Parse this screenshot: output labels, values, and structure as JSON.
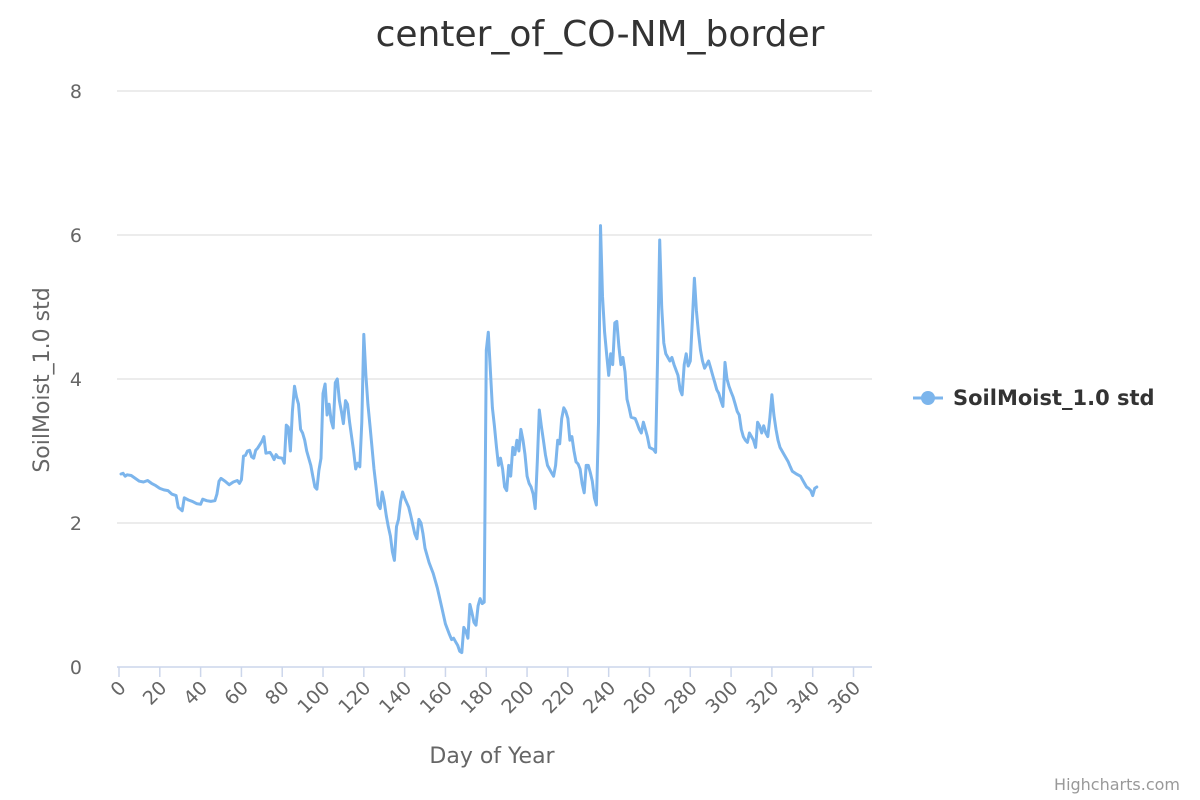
{
  "chart_data": {
    "type": "line",
    "title": "center_of_CO-NM_border",
    "xlabel": "Day of Year",
    "ylabel": "SoilMoist_1.0 std",
    "xlim": [
      0,
      366
    ],
    "ylim": [
      0,
      8
    ],
    "x_ticks": [
      0,
      20,
      40,
      60,
      80,
      100,
      120,
      140,
      160,
      180,
      200,
      220,
      240,
      260,
      280,
      300,
      320,
      340,
      360
    ],
    "y_ticks": [
      0,
      2,
      4,
      6,
      8
    ],
    "grid": true,
    "legend_position": "right",
    "series": [
      {
        "name": "SoilMoist_1.0 std",
        "color": "#7cb5ec",
        "points": [
          [
            1,
            2.68
          ],
          [
            2,
            2.69
          ],
          [
            3,
            2.65
          ],
          [
            4,
            2.67
          ],
          [
            6,
            2.66
          ],
          [
            8,
            2.62
          ],
          [
            10,
            2.58
          ],
          [
            12,
            2.57
          ],
          [
            14,
            2.59
          ],
          [
            16,
            2.55
          ],
          [
            18,
            2.52
          ],
          [
            20,
            2.48
          ],
          [
            22,
            2.46
          ],
          [
            24,
            2.45
          ],
          [
            26,
            2.4
          ],
          [
            28,
            2.38
          ],
          [
            29,
            2.22
          ],
          [
            31,
            2.17
          ],
          [
            32,
            2.35
          ],
          [
            34,
            2.32
          ],
          [
            36,
            2.3
          ],
          [
            38,
            2.27
          ],
          [
            40,
            2.26
          ],
          [
            41,
            2.33
          ],
          [
            43,
            2.31
          ],
          [
            45,
            2.3
          ],
          [
            47,
            2.31
          ],
          [
            48,
            2.4
          ],
          [
            49,
            2.58
          ],
          [
            50,
            2.62
          ],
          [
            52,
            2.58
          ],
          [
            54,
            2.53
          ],
          [
            56,
            2.57
          ],
          [
            58,
            2.59
          ],
          [
            59,
            2.55
          ],
          [
            60,
            2.6
          ],
          [
            61,
            2.93
          ],
          [
            62,
            2.94
          ],
          [
            63,
            3.0
          ],
          [
            64,
            3.01
          ],
          [
            65,
            2.92
          ],
          [
            66,
            2.9
          ],
          [
            67,
            3.01
          ],
          [
            68,
            3.04
          ],
          [
            70,
            3.13
          ],
          [
            71,
            3.2
          ],
          [
            72,
            2.97
          ],
          [
            74,
            2.98
          ],
          [
            75,
            2.94
          ],
          [
            76,
            2.88
          ],
          [
            77,
            2.95
          ],
          [
            78,
            2.91
          ],
          [
            80,
            2.9
          ],
          [
            81,
            2.83
          ],
          [
            82,
            3.36
          ],
          [
            83,
            3.33
          ],
          [
            84,
            3.0
          ],
          [
            85,
            3.55
          ],
          [
            86,
            3.9
          ],
          [
            87,
            3.75
          ],
          [
            88,
            3.65
          ],
          [
            89,
            3.3
          ],
          [
            90,
            3.25
          ],
          [
            91,
            3.15
          ],
          [
            92,
            3.0
          ],
          [
            94,
            2.8
          ],
          [
            95,
            2.65
          ],
          [
            96,
            2.5
          ],
          [
            97,
            2.47
          ],
          [
            98,
            2.73
          ],
          [
            99,
            2.9
          ],
          [
            100,
            3.8
          ],
          [
            101,
            3.93
          ],
          [
            102,
            3.5
          ],
          [
            103,
            3.65
          ],
          [
            104,
            3.42
          ],
          [
            105,
            3.32
          ],
          [
            106,
            3.95
          ],
          [
            107,
            4.0
          ],
          [
            108,
            3.7
          ],
          [
            109,
            3.55
          ],
          [
            110,
            3.38
          ],
          [
            111,
            3.7
          ],
          [
            112,
            3.65
          ],
          [
            113,
            3.4
          ],
          [
            114,
            3.2
          ],
          [
            115,
            3.0
          ],
          [
            116,
            2.75
          ],
          [
            117,
            2.83
          ],
          [
            118,
            2.78
          ],
          [
            119,
            3.4
          ],
          [
            120,
            4.62
          ],
          [
            121,
            4.05
          ],
          [
            122,
            3.65
          ],
          [
            123,
            3.35
          ],
          [
            124,
            3.05
          ],
          [
            125,
            2.75
          ],
          [
            126,
            2.5
          ],
          [
            127,
            2.25
          ],
          [
            128,
            2.2
          ],
          [
            129,
            2.43
          ],
          [
            130,
            2.3
          ],
          [
            131,
            2.1
          ],
          [
            132,
            1.95
          ],
          [
            133,
            1.82
          ],
          [
            134,
            1.6
          ],
          [
            135,
            1.48
          ],
          [
            136,
            1.95
          ],
          [
            137,
            2.05
          ],
          [
            138,
            2.3
          ],
          [
            139,
            2.43
          ],
          [
            140,
            2.35
          ],
          [
            142,
            2.22
          ],
          [
            143,
            2.1
          ],
          [
            145,
            1.85
          ],
          [
            146,
            1.78
          ],
          [
            147,
            2.05
          ],
          [
            148,
            2.0
          ],
          [
            149,
            1.85
          ],
          [
            150,
            1.65
          ],
          [
            152,
            1.45
          ],
          [
            154,
            1.3
          ],
          [
            156,
            1.1
          ],
          [
            158,
            0.85
          ],
          [
            160,
            0.6
          ],
          [
            162,
            0.45
          ],
          [
            163,
            0.38
          ],
          [
            164,
            0.4
          ],
          [
            165,
            0.35
          ],
          [
            166,
            0.3
          ],
          [
            167,
            0.22
          ],
          [
            168,
            0.2
          ],
          [
            169,
            0.55
          ],
          [
            170,
            0.5
          ],
          [
            171,
            0.4
          ],
          [
            172,
            0.87
          ],
          [
            173,
            0.75
          ],
          [
            174,
            0.62
          ],
          [
            175,
            0.58
          ],
          [
            176,
            0.85
          ],
          [
            177,
            0.95
          ],
          [
            178,
            0.88
          ],
          [
            179,
            0.9
          ],
          [
            180,
            4.4
          ],
          [
            181,
            4.65
          ],
          [
            183,
            3.6
          ],
          [
            184,
            3.35
          ],
          [
            185,
            3.05
          ],
          [
            186,
            2.8
          ],
          [
            187,
            2.9
          ],
          [
            188,
            2.75
          ],
          [
            189,
            2.5
          ],
          [
            190,
            2.45
          ],
          [
            191,
            2.8
          ],
          [
            192,
            2.65
          ],
          [
            193,
            3.05
          ],
          [
            194,
            2.95
          ],
          [
            195,
            3.15
          ],
          [
            196,
            3.0
          ],
          [
            197,
            3.3
          ],
          [
            198,
            3.15
          ],
          [
            199,
            2.95
          ],
          [
            200,
            2.65
          ],
          [
            201,
            2.55
          ],
          [
            202,
            2.5
          ],
          [
            203,
            2.4
          ],
          [
            204,
            2.2
          ],
          [
            205,
            2.85
          ],
          [
            206,
            3.57
          ],
          [
            207,
            3.35
          ],
          [
            208,
            3.15
          ],
          [
            209,
            2.95
          ],
          [
            210,
            2.8
          ],
          [
            211,
            2.75
          ],
          [
            212,
            2.7
          ],
          [
            213,
            2.65
          ],
          [
            214,
            2.8
          ],
          [
            215,
            3.15
          ],
          [
            216,
            3.1
          ],
          [
            217,
            3.45
          ],
          [
            218,
            3.6
          ],
          [
            219,
            3.55
          ],
          [
            220,
            3.45
          ],
          [
            221,
            3.15
          ],
          [
            222,
            3.2
          ],
          [
            223,
            3.0
          ],
          [
            224,
            2.85
          ],
          [
            225,
            2.82
          ],
          [
            226,
            2.75
          ],
          [
            227,
            2.55
          ],
          [
            228,
            2.42
          ],
          [
            229,
            2.8
          ],
          [
            230,
            2.8
          ],
          [
            231,
            2.7
          ],
          [
            232,
            2.58
          ],
          [
            233,
            2.35
          ],
          [
            234,
            2.25
          ],
          [
            235,
            3.4
          ],
          [
            236,
            6.13
          ],
          [
            237,
            5.15
          ],
          [
            238,
            4.65
          ],
          [
            239,
            4.35
          ],
          [
            240,
            4.05
          ],
          [
            241,
            4.35
          ],
          [
            242,
            4.2
          ],
          [
            243,
            4.78
          ],
          [
            244,
            4.8
          ],
          [
            245,
            4.45
          ],
          [
            246,
            4.2
          ],
          [
            247,
            4.3
          ],
          [
            248,
            4.1
          ],
          [
            249,
            3.72
          ],
          [
            250,
            3.6
          ],
          [
            251,
            3.47
          ],
          [
            253,
            3.45
          ],
          [
            254,
            3.38
          ],
          [
            255,
            3.3
          ],
          [
            256,
            3.25
          ],
          [
            257,
            3.4
          ],
          [
            258,
            3.3
          ],
          [
            259,
            3.2
          ],
          [
            260,
            3.05
          ],
          [
            262,
            3.02
          ],
          [
            263,
            2.98
          ],
          [
            264,
            4.3
          ],
          [
            265,
            5.93
          ],
          [
            266,
            5.0
          ],
          [
            267,
            4.5
          ],
          [
            268,
            4.35
          ],
          [
            270,
            4.25
          ],
          [
            271,
            4.3
          ],
          [
            272,
            4.2
          ],
          [
            274,
            4.05
          ],
          [
            275,
            3.85
          ],
          [
            276,
            3.78
          ],
          [
            277,
            4.2
          ],
          [
            278,
            4.35
          ],
          [
            279,
            4.18
          ],
          [
            280,
            4.25
          ],
          [
            281,
            4.8
          ],
          [
            282,
            5.4
          ],
          [
            283,
            4.95
          ],
          [
            284,
            4.65
          ],
          [
            285,
            4.4
          ],
          [
            286,
            4.25
          ],
          [
            287,
            4.15
          ],
          [
            288,
            4.2
          ],
          [
            289,
            4.25
          ],
          [
            290,
            4.15
          ],
          [
            291,
            4.05
          ],
          [
            292,
            3.95
          ],
          [
            293,
            3.85
          ],
          [
            294,
            3.8
          ],
          [
            295,
            3.7
          ],
          [
            296,
            3.62
          ],
          [
            297,
            4.23
          ],
          [
            298,
            4.0
          ],
          [
            299,
            3.9
          ],
          [
            300,
            3.82
          ],
          [
            301,
            3.75
          ],
          [
            302,
            3.65
          ],
          [
            303,
            3.55
          ],
          [
            304,
            3.5
          ],
          [
            305,
            3.3
          ],
          [
            306,
            3.2
          ],
          [
            307,
            3.15
          ],
          [
            308,
            3.12
          ],
          [
            309,
            3.25
          ],
          [
            310,
            3.2
          ],
          [
            311,
            3.15
          ],
          [
            312,
            3.05
          ],
          [
            313,
            3.4
          ],
          [
            314,
            3.35
          ],
          [
            315,
            3.25
          ],
          [
            316,
            3.35
          ],
          [
            317,
            3.25
          ],
          [
            318,
            3.2
          ],
          [
            319,
            3.45
          ],
          [
            320,
            3.78
          ],
          [
            321,
            3.5
          ],
          [
            322,
            3.3
          ],
          [
            323,
            3.15
          ],
          [
            324,
            3.05
          ],
          [
            326,
            2.95
          ],
          [
            328,
            2.85
          ],
          [
            329,
            2.78
          ],
          [
            330,
            2.72
          ],
          [
            332,
            2.68
          ],
          [
            334,
            2.65
          ],
          [
            335,
            2.6
          ],
          [
            336,
            2.55
          ],
          [
            337,
            2.5
          ],
          [
            338,
            2.48
          ],
          [
            339,
            2.45
          ],
          [
            340,
            2.38
          ],
          [
            341,
            2.48
          ],
          [
            342,
            2.5
          ]
        ]
      }
    ]
  },
  "credits": "Highcharts.com"
}
